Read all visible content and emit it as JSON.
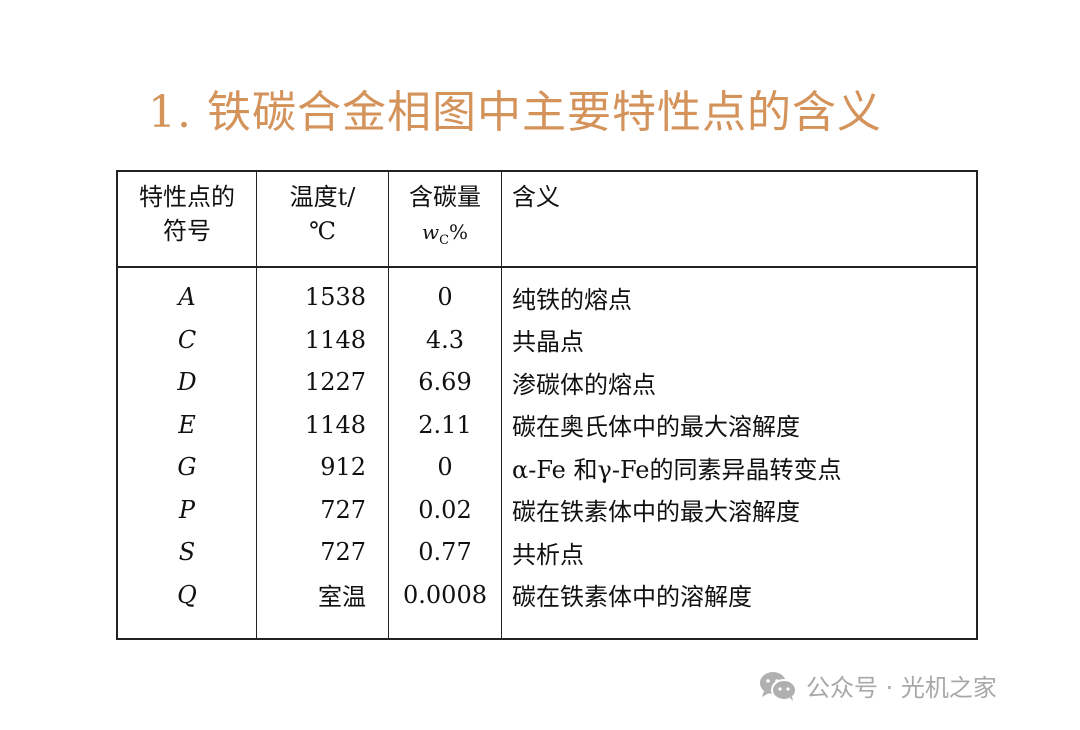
{
  "title": "1. 铁碳合金相图中主要特性点的含义",
  "table": {
    "headers": {
      "symbol_line1": "特性点的",
      "symbol_line2": "符号",
      "temp_line1": "温度t/",
      "temp_line2": "℃",
      "carbon_line1": "含碳量",
      "carbon_var": "w",
      "carbon_sub": "C",
      "carbon_unit": "%",
      "meaning": "含义"
    },
    "rows": [
      {
        "symbol": "A",
        "temp": "1538",
        "carbon": "0",
        "meaning": "纯铁的熔点"
      },
      {
        "symbol": "C",
        "temp": "1148",
        "carbon": "4.3",
        "meaning": "共晶点"
      },
      {
        "symbol": "D",
        "temp": "1227",
        "carbon": "6.69",
        "meaning": "渗碳体的熔点"
      },
      {
        "symbol": "E",
        "temp": "1148",
        "carbon": "2.11",
        "meaning": "碳在奥氏体中的最大溶解度"
      },
      {
        "symbol": "G",
        "temp": "912",
        "carbon": "0",
        "meaning": "α-Fe 和γ-Fe的同素异晶转变点"
      },
      {
        "symbol": "P",
        "temp": "727",
        "carbon": "0.02",
        "meaning": "碳在铁素体中的最大溶解度"
      },
      {
        "symbol": "S",
        "temp": "727",
        "carbon": "0.77",
        "meaning": "共析点"
      },
      {
        "symbol": "Q",
        "temp": "室温",
        "carbon": "0.0008",
        "meaning": "碳在铁素体中的溶解度"
      }
    ]
  },
  "watermark": {
    "text": "公众号 · 光机之家",
    "icon": "wechat-icon"
  },
  "colors": {
    "title": "#d4935a",
    "watermark": "#a8a8a8"
  }
}
